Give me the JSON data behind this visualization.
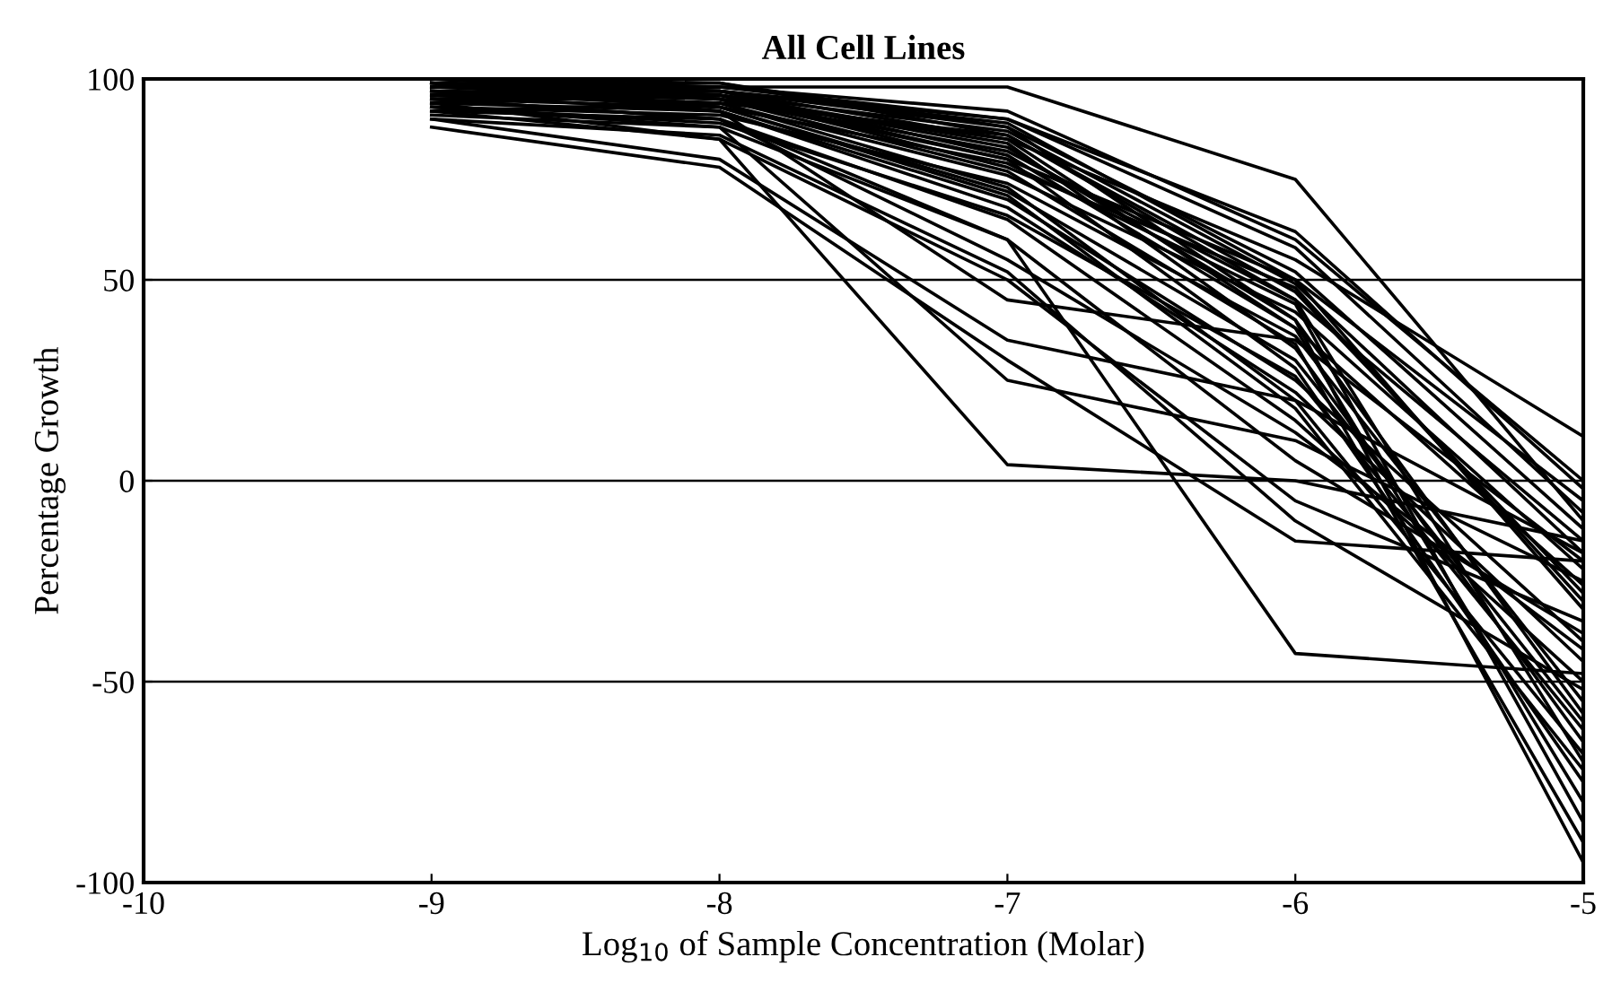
{
  "chart_data": {
    "type": "line",
    "title": "All Cell Lines",
    "xlabel": "Log$_{10}$ of Sample Concentration (Molar)",
    "ylabel": "Percentage Growth",
    "x": [
      -9,
      -8,
      -7,
      -6,
      -5
    ],
    "xlim": [
      -10,
      -5
    ],
    "xticks": [
      -10,
      -9,
      -8,
      -7,
      -6,
      -5
    ],
    "ylim": [
      -100,
      100
    ],
    "yticks": [
      -100,
      -50,
      0,
      50,
      100
    ],
    "grid": "y",
    "marker": "none",
    "line_style": "solid",
    "series": [
      {
        "color": "#000000",
        "values": [
          96,
          98,
          98,
          75,
          -10
        ]
      },
      {
        "color": "#000000",
        "values": [
          92,
          85,
          4,
          0,
          -15
        ]
      },
      {
        "color": "#000000",
        "values": [
          95,
          90,
          60,
          -43,
          -48
        ]
      },
      {
        "color": "#000000",
        "values": [
          97,
          95,
          85,
          55,
          11
        ]
      },
      {
        "color": "#000000",
        "values": [
          99,
          97,
          88,
          40,
          -95
        ]
      },
      {
        "color": "#000000",
        "values": [
          94,
          92,
          45,
          35,
          -20
        ]
      },
      {
        "color": "#000000",
        "values": [
          98,
          96,
          80,
          50,
          -5
        ]
      },
      {
        "color": "#000000",
        "values": [
          93,
          88,
          25,
          10,
          -25
        ]
      },
      {
        "color": "#000000",
        "values": [
          100,
          98,
          90,
          62,
          -2
        ]
      },
      {
        "color": "#000000",
        "values": [
          95,
          93,
          72,
          30,
          -60
        ]
      },
      {
        "color": "#000000",
        "values": [
          97,
          96,
          78,
          48,
          -30
        ]
      },
      {
        "color": "#000000",
        "values": [
          90,
          80,
          35,
          20,
          -18
        ]
      },
      {
        "color": "#000000",
        "values": [
          99,
          95,
          82,
          45,
          -70
        ]
      },
      {
        "color": "#000000",
        "values": [
          96,
          92,
          70,
          25,
          -40
        ]
      },
      {
        "color": "#000000",
        "values": [
          98,
          99,
          88,
          52,
          -12
        ]
      },
      {
        "color": "#000000",
        "values": [
          92,
          90,
          65,
          15,
          -50
        ]
      },
      {
        "color": "#000000",
        "values": [
          100,
          97,
          85,
          38,
          -80
        ]
      },
      {
        "color": "#000000",
        "values": [
          94,
          85,
          50,
          -5,
          -35
        ]
      },
      {
        "color": "#000000",
        "values": [
          97,
          94,
          76,
          42,
          -22
        ]
      },
      {
        "color": "#000000",
        "values": [
          95,
          96,
          84,
          33,
          -65
        ]
      },
      {
        "color": "#000000",
        "values": [
          99,
          92,
          68,
          22,
          -45
        ]
      },
      {
        "color": "#000000",
        "values": [
          88,
          78,
          30,
          -15,
          -20
        ]
      },
      {
        "color": "#000000",
        "values": [
          96,
          97,
          90,
          58,
          -8
        ]
      },
      {
        "color": "#000000",
        "values": [
          93,
          91,
          74,
          36,
          -55
        ]
      },
      {
        "color": "#000000",
        "values": [
          98,
          95,
          80,
          28,
          -75
        ]
      },
      {
        "color": "#000000",
        "values": [
          100,
          99,
          86,
          47,
          -28
        ]
      },
      {
        "color": "#000000",
        "values": [
          91,
          88,
          60,
          5,
          -38
        ]
      },
      {
        "color": "#000000",
        "values": [
          97,
          93,
          79,
          44,
          -85
        ]
      },
      {
        "color": "#000000",
        "values": [
          95,
          90,
          55,
          12,
          -42
        ]
      },
      {
        "color": "#000000",
        "values": [
          99,
          98,
          92,
          60,
          0
        ]
      },
      {
        "color": "#000000",
        "values": [
          94,
          96,
          83,
          40,
          -58
        ]
      },
      {
        "color": "#000000",
        "values": [
          96,
          94,
          73,
          20,
          -68
        ]
      },
      {
        "color": "#000000",
        "values": [
          98,
          97,
          89,
          50,
          -32
        ]
      },
      {
        "color": "#000000",
        "values": [
          90,
          86,
          52,
          -10,
          -52
        ]
      },
      {
        "color": "#000000",
        "values": [
          97,
          95,
          77,
          34,
          -90
        ]
      },
      {
        "color": "#000000",
        "values": [
          100,
          96,
          87,
          49,
          -18
        ]
      },
      {
        "color": "#000000",
        "values": [
          93,
          89,
          66,
          26,
          -62
        ]
      },
      {
        "color": "#000000",
        "values": [
          95,
          97,
          81,
          38,
          -26
        ]
      },
      {
        "color": "#000000",
        "values": [
          99,
          93,
          71,
          18,
          -72
        ]
      },
      {
        "color": "#000000",
        "values": [
          92,
          94,
          86,
          45,
          -15
        ]
      }
    ]
  }
}
